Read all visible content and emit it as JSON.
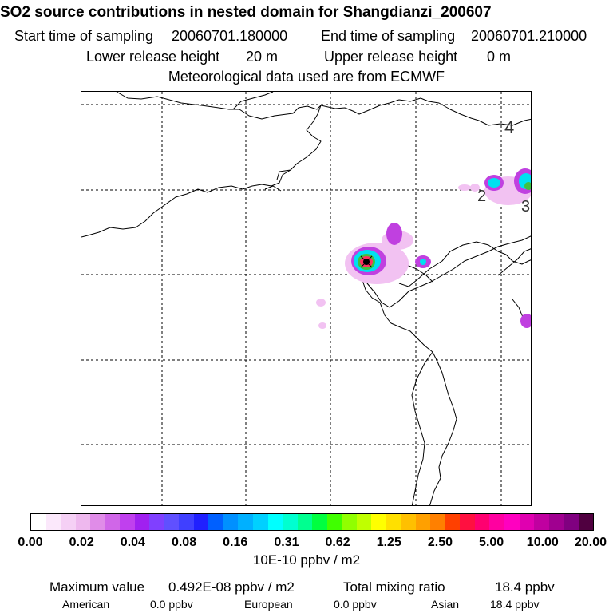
{
  "header": {
    "title": "SO2 source contributions in nested domain for Shangdianzi_200607",
    "start_label": "Start time of sampling",
    "start_value": "20060701.180000",
    "end_label": "End time of sampling",
    "end_value": "20060701.210000",
    "lower_label": "Lower release height",
    "lower_value": "20 m",
    "upper_label": "Upper release height",
    "upper_value": "0 m",
    "met_text": "Meteorological data used are from ECMWF"
  },
  "map": {
    "region_labels": [
      "4",
      "2",
      "3"
    ],
    "colors": {
      "low": "#f2c2f2",
      "mid": "#c040e0",
      "high": "#9a20c8",
      "cyan": "#00e0f0",
      "green": "#40c040",
      "red": "#ff3060",
      "black": "#000000"
    }
  },
  "colorbar": {
    "colors": [
      "#ffffff",
      "#fbe8fb",
      "#f5d0f5",
      "#eeb8ee",
      "#e08ce8",
      "#d066e8",
      "#c040ee",
      "#a020f0",
      "#8040ff",
      "#6050ff",
      "#4040ff",
      "#2020ff",
      "#0060ff",
      "#0090ff",
      "#00b0ff",
      "#00d0ff",
      "#00ffff",
      "#00ffd0",
      "#00ff90",
      "#00ff40",
      "#40ff00",
      "#90ff00",
      "#c0ff00",
      "#ffff00",
      "#ffe000",
      "#ffc000",
      "#ffa000",
      "#ff8000",
      "#ff4000",
      "#ff1040",
      "#ff0070",
      "#ff00a0",
      "#ff00c0",
      "#e000b0",
      "#c000a0",
      "#a00090",
      "#800080",
      "#500040"
    ],
    "tick_labels": [
      "0.00",
      "0.02",
      "0.04",
      "0.08",
      "0.16",
      "0.31",
      "0.62",
      "1.25",
      "2.50",
      "5.00",
      "10.00",
      "20.00"
    ],
    "units": "10E-10 ppbv / m2"
  },
  "stats": {
    "max_label": "Maximum value",
    "max_value": "0.492E-08 ppbv / m2",
    "total_label": "Total mixing ratio",
    "total_value": "18.4 ppbv",
    "regions": [
      {
        "name": "American",
        "value": "0.0 ppbv"
      },
      {
        "name": "European",
        "value": "0.0 ppbv"
      },
      {
        "name": "Asian",
        "value": "18.4 ppbv"
      }
    ]
  }
}
